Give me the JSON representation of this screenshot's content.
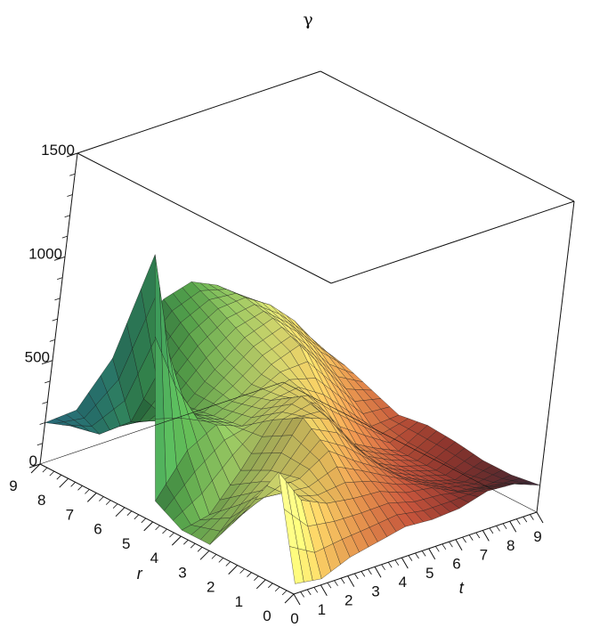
{
  "chart_data": {
    "type": "surface3d",
    "title": "γ",
    "xlabel": "t",
    "ylabel": "r",
    "zlabel": "",
    "x_ticks": [
      "0",
      "1",
      "2",
      "3",
      "4",
      "5",
      "6",
      "7",
      "8",
      "9"
    ],
    "y_ticks": [
      "0",
      "1",
      "2",
      "3",
      "4",
      "5",
      "6",
      "7",
      "8",
      "9"
    ],
    "z_ticks": [
      "0",
      "500",
      "1000",
      "1500"
    ],
    "xlim": [
      0,
      9
    ],
    "ylim": [
      0,
      9
    ],
    "zlim": [
      0,
      1500
    ],
    "grid": [
      [
        50,
        520,
        250,
        30,
        30,
        100,
        1220,
        650,
        330,
        200
      ],
      [
        30,
        340,
        320,
        180,
        60,
        300,
        700,
        300,
        170,
        140
      ],
      [
        90,
        280,
        330,
        300,
        230,
        380,
        360,
        260,
        200,
        230
      ],
      [
        120,
        260,
        420,
        510,
        430,
        330,
        310,
        290,
        360,
        470
      ],
      [
        150,
        250,
        330,
        460,
        500,
        410,
        370,
        420,
        520,
        620
      ],
      [
        140,
        200,
        250,
        300,
        380,
        430,
        470,
        530,
        600,
        660
      ],
      [
        150,
        180,
        160,
        160,
        190,
        350,
        520,
        580,
        610,
        600
      ],
      [
        190,
        120,
        100,
        100,
        120,
        230,
        370,
        470,
        530,
        500
      ],
      [
        180,
        100,
        60,
        60,
        60,
        110,
        220,
        330,
        410,
        390
      ],
      [
        130,
        110,
        110,
        130,
        140,
        120,
        170,
        220,
        250,
        230
      ]
    ],
    "grid_note_axes": "rows indexed by t = 0..9, columns indexed by r = 0..9",
    "colormap": [
      "#3b2a3a",
      "#6b2f31",
      "#9c3b32",
      "#c9573d",
      "#e08a4a",
      "#e9c25e",
      "#dfe173",
      "#9fd267",
      "#58a94e",
      "#2f7a48",
      "#27716c",
      "#2a6f80"
    ]
  }
}
